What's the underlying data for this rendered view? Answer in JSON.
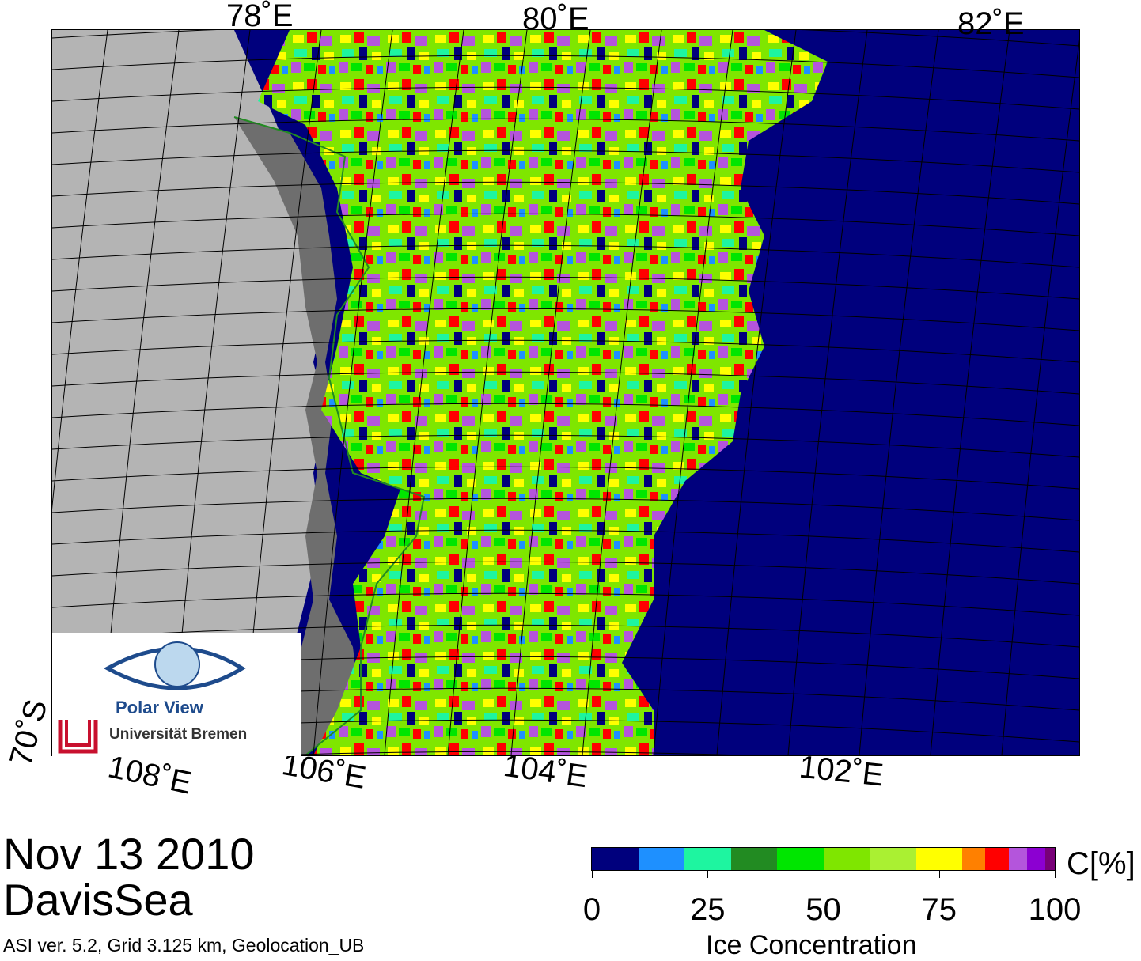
{
  "map": {
    "lat_label_70": "70˚S",
    "lon_top": [
      "78˚E",
      "80˚E",
      "82˚E"
    ],
    "lon_bottom": [
      "108˚E",
      "106˚E",
      "104˚E",
      "102˚E"
    ],
    "colors": {
      "open_water": "#00007d",
      "land": "#b4b4b4",
      "ice_shelf": "#6e6e6e",
      "coastline": "#228b22"
    }
  },
  "logo": {
    "name": "Polar View",
    "institution": "Universität Bremen"
  },
  "title": {
    "date": "Nov 13 2010",
    "region": "DavisSea",
    "meta": "ASI ver. 5.2,  Grid 3.125 km, Geolocation_UB"
  },
  "colorbar": {
    "unit": "C[%]",
    "title": "Ice Concentration",
    "ticks": [
      "0",
      "25",
      "50",
      "75",
      "100"
    ],
    "segments": [
      {
        "from": 0,
        "to": 10,
        "color": "#00007d"
      },
      {
        "from": 10,
        "to": 20,
        "color": "#1e90ff"
      },
      {
        "from": 20,
        "to": 30,
        "color": "#1ef5a0"
      },
      {
        "from": 30,
        "to": 40,
        "color": "#228b22"
      },
      {
        "from": 40,
        "to": 50,
        "color": "#00e600"
      },
      {
        "from": 50,
        "to": 60,
        "color": "#7fe600"
      },
      {
        "from": 60,
        "to": 70,
        "color": "#aaf032"
      },
      {
        "from": 70,
        "to": 80,
        "color": "#ffff00"
      },
      {
        "from": 80,
        "to": 85,
        "color": "#ff8000"
      },
      {
        "from": 85,
        "to": 90,
        "color": "#ff0000"
      },
      {
        "from": 90,
        "to": 94,
        "color": "#b455dc"
      },
      {
        "from": 94,
        "to": 98,
        "color": "#8c00d2"
      },
      {
        "from": 98,
        "to": 100,
        "color": "#780078"
      }
    ]
  }
}
